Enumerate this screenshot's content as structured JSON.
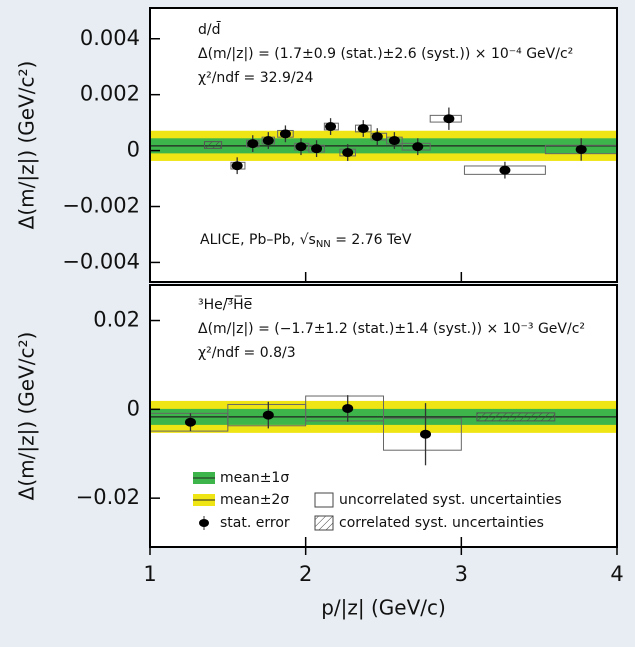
{
  "chart_data": [
    {
      "type": "scatter",
      "annotations": [
        "d/d̄",
        "Δ(m/|z|) = (1.7±0.9 (stat.)±2.6 (syst.)) × 10⁻⁴ GeV/c²",
        "χ²/ndf = 32.9/24"
      ],
      "system": [
        "ALICE, Pb–Pb, √s",
        "NN",
        " = 2.76 TeV"
      ],
      "ylabel": "Δ(m/|z|) (GeV/c²)",
      "x": [
        1.56,
        1.66,
        1.76,
        1.87,
        1.97,
        2.07,
        2.16,
        2.27,
        2.37,
        2.46,
        2.57,
        2.72,
        2.92,
        3.28,
        3.77
      ],
      "values": [
        -0.00054,
        0.00025,
        0.00036,
        0.0006,
        0.00014,
        7e-05,
        0.00086,
        -7e-05,
        0.00079,
        0.0005,
        0.00036,
        0.00014,
        0.00114,
        -0.0007,
        4e-05
      ],
      "errors": [
        0.0003,
        0.0003,
        0.0003,
        0.0003,
        0.0003,
        0.0003,
        0.0003,
        0.0003,
        0.0003,
        0.0003,
        0.0003,
        0.0003,
        0.0004,
        0.0003,
        0.0004
      ],
      "syst_x": [
        [
          1.52,
          1.61
        ],
        [
          1.62,
          1.7
        ],
        [
          1.72,
          1.8
        ],
        [
          1.82,
          1.92
        ],
        [
          1.93,
          2.02
        ],
        [
          2.02,
          2.12
        ],
        [
          2.12,
          2.21
        ],
        [
          2.22,
          2.32
        ],
        [
          2.32,
          2.42
        ],
        [
          2.42,
          2.52
        ],
        [
          2.52,
          2.62
        ],
        [
          2.62,
          2.8
        ],
        [
          2.8,
          3.0
        ],
        [
          3.02,
          3.54
        ],
        [
          3.54,
          4.0
        ]
      ],
      "syst_y": [
        0.00012,
        0.00012,
        0.00012,
        0.00012,
        0.00012,
        0.00012,
        0.00012,
        0.00012,
        0.00012,
        0.00012,
        0.00012,
        0.00012,
        0.00012,
        0.00015,
        0.00015
      ],
      "correlated": {
        "x": [
          1.35,
          1.46
        ],
        "value": 0.0002,
        "error": 0.00012
      },
      "mean": 0.00017,
      "sigma": 0.00027,
      "xlim": [
        1,
        4
      ],
      "ylim": [
        -0.0047,
        0.0051
      ],
      "yticks": [
        {
          "value": -0.004,
          "label": "−0.004"
        },
        {
          "value": -0.002,
          "label": "−0.002"
        },
        0,
        0.002,
        0.004
      ]
    },
    {
      "type": "scatter",
      "annotations": [
        "³He/³̅H̅e̅",
        "Δ(m/|z|) = (−1.7±1.2 (stat.)±1.4 (syst.)) × 10⁻³ GeV/c²",
        "χ²/ndf = 0.8/3"
      ],
      "ylabel": "Δ(m/|z|) (GeV/c²)",
      "xlabel": "p/|z| (GeV/c)",
      "x": [
        1.26,
        1.76,
        2.27,
        2.77
      ],
      "values": [
        -0.0029,
        -0.0013,
        0.0002,
        -0.0056
      ],
      "errors": [
        0.002,
        0.003,
        0.003,
        0.007
      ],
      "syst_x": [
        [
          1.0,
          1.5
        ],
        [
          1.5,
          2.0
        ],
        [
          2.0,
          2.5
        ],
        [
          2.5,
          3.0
        ]
      ],
      "syst_y": [
        0.002,
        0.0024,
        0.0028,
        0.0036
      ],
      "correlated": {
        "x": [
          3.1,
          3.6
        ],
        "value": -0.0017,
        "error": 0.0009
      },
      "mean": -0.0017,
      "sigma": 0.0018,
      "legend": [
        "mean±1σ",
        "mean±2σ",
        "stat. error",
        "uncorrelated syst. uncertainties",
        "correlated syst. uncertainties"
      ],
      "xlim": [
        1,
        4
      ],
      "ylim": [
        -0.031,
        0.028
      ],
      "xticks": [
        1,
        2,
        3,
        4
      ],
      "yticks": [
        {
          "value": -0.02,
          "label": "−0.02"
        },
        0,
        0.02
      ]
    }
  ]
}
